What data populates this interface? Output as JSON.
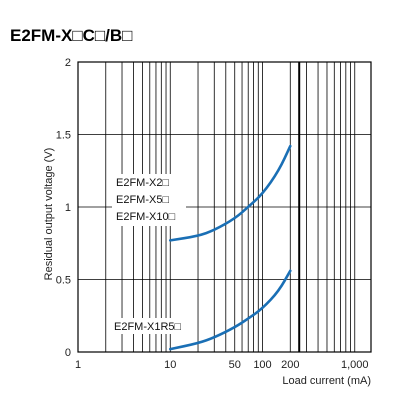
{
  "chart_data": {
    "type": "line",
    "title": "E2FM-X□C□/B□",
    "xlabel": "Load current (mA)",
    "ylabel": "Residual output voltage (V)",
    "x_scale": "log",
    "xlim": [
      1,
      1500
    ],
    "ylim": [
      0,
      2
    ],
    "x_ticks": [
      {
        "value": 1,
        "label": "1"
      },
      {
        "value": 10,
        "label": "10"
      },
      {
        "value": 50,
        "label": "50"
      },
      {
        "value": 100,
        "label": "100"
      },
      {
        "value": 200,
        "label": "200"
      },
      {
        "value": 1000,
        "label": "1,000"
      }
    ],
    "y_ticks": [
      {
        "value": 0,
        "label": "0"
      },
      {
        "value": 0.5,
        "label": "0.5"
      },
      {
        "value": 1,
        "label": "1"
      },
      {
        "value": 1.5,
        "label": "1.5"
      },
      {
        "value": 2,
        "label": "2"
      }
    ],
    "grid": true,
    "series": [
      {
        "labels": [
          "E2FM-X2□",
          "E2FM-X5□",
          "E2FM-X10□"
        ],
        "color": "#1a6fb5",
        "points": [
          [
            10,
            0.77
          ],
          [
            20,
            0.8
          ],
          [
            30,
            0.84
          ],
          [
            50,
            0.92
          ],
          [
            70,
            1.0
          ],
          [
            100,
            1.09
          ],
          [
            150,
            1.25
          ],
          [
            200,
            1.42
          ]
        ]
      },
      {
        "labels": [
          "E2FM-X1R5□"
        ],
        "color": "#1a6fb5",
        "points": [
          [
            10,
            0.02
          ],
          [
            20,
            0.06
          ],
          [
            30,
            0.1
          ],
          [
            50,
            0.17
          ],
          [
            70,
            0.23
          ],
          [
            100,
            0.3
          ],
          [
            150,
            0.42
          ],
          [
            200,
            0.56
          ]
        ]
      }
    ],
    "marker_line_x": 250
  }
}
